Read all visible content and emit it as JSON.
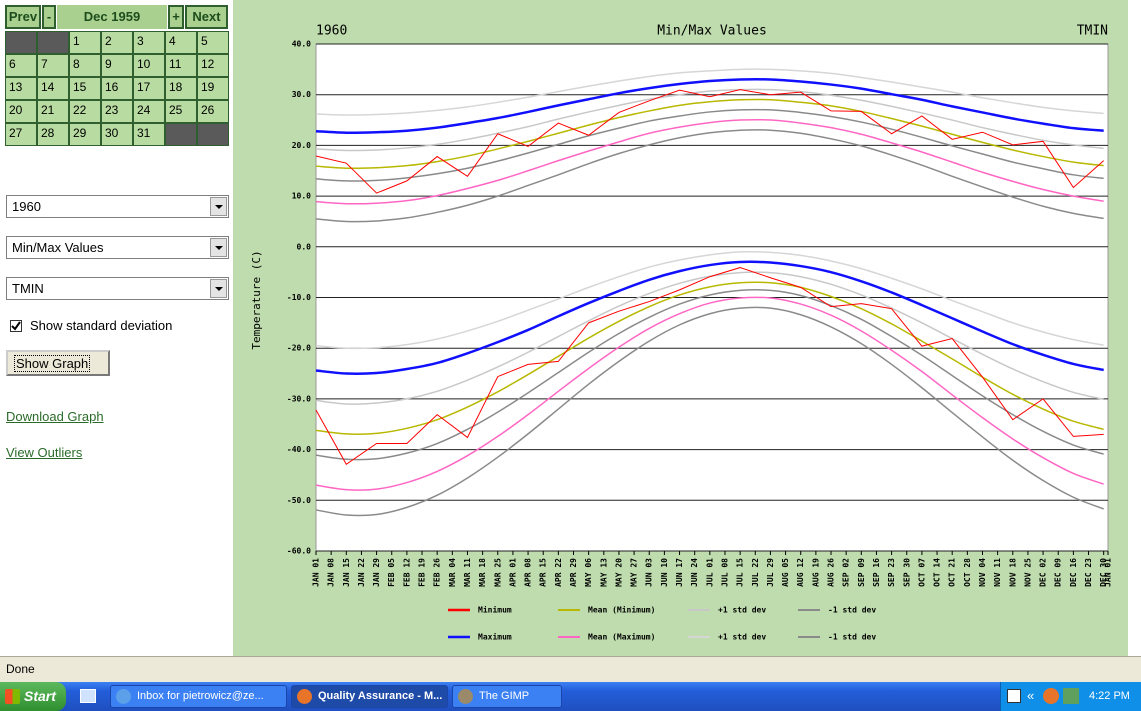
{
  "calendar": {
    "prev": "Prev",
    "minus": "-",
    "month": "Dec 1959",
    "plus": "+",
    "next": "Next",
    "days": [
      1,
      2,
      3,
      4,
      5,
      6,
      7,
      8,
      9,
      10,
      11,
      12,
      13,
      14,
      15,
      16,
      17,
      18,
      19,
      20,
      21,
      22,
      23,
      24,
      25,
      26,
      27,
      28,
      29,
      30,
      31
    ]
  },
  "controls": {
    "year": "1960",
    "graph_type": "Min/Max Values",
    "element": "TMIN",
    "checkbox": "Show standard deviation",
    "button": "Show Graph",
    "links": [
      "Download Graph",
      "View Outliers"
    ]
  },
  "chart_data": {
    "type": "line",
    "title": "Min/Max Values",
    "left_label": "1960",
    "right_label": "TMIN",
    "y_label": "Temperature (C)",
    "xlim": [
      1,
      367
    ],
    "xticks": [
      {
        "value": 1,
        "label": "JAN 01"
      },
      {
        "value": 8,
        "label": "JAN 08"
      },
      {
        "value": 15,
        "label": "JAN 15"
      },
      {
        "value": 22,
        "label": "JAN 22"
      },
      {
        "value": 29,
        "label": "JAN 29"
      },
      {
        "value": 36,
        "label": "FEB 05"
      },
      {
        "value": 43,
        "label": "FEB 12"
      },
      {
        "value": 50,
        "label": "FEB 19"
      },
      {
        "value": 57,
        "label": "FEB 26"
      },
      {
        "value": 64,
        "label": "MAR 04"
      },
      {
        "value": 71,
        "label": "MAR 11"
      },
      {
        "value": 78,
        "label": "MAR 18"
      },
      {
        "value": 85,
        "label": "MAR 25"
      },
      {
        "value": 92,
        "label": "APR 01"
      },
      {
        "value": 99,
        "label": "APR 08"
      },
      {
        "value": 106,
        "label": "APR 15"
      },
      {
        "value": 113,
        "label": "APR 22"
      },
      {
        "value": 120,
        "label": "APR 29"
      },
      {
        "value": 127,
        "label": "MAY 06"
      },
      {
        "value": 134,
        "label": "MAY 13"
      },
      {
        "value": 141,
        "label": "MAY 20"
      },
      {
        "value": 148,
        "label": "MAY 27"
      },
      {
        "value": 155,
        "label": "JUN 03"
      },
      {
        "value": 162,
        "label": "JUN 10"
      },
      {
        "value": 169,
        "label": "JUN 17"
      },
      {
        "value": 176,
        "label": "JUN 24"
      },
      {
        "value": 183,
        "label": "JUL 01"
      },
      {
        "value": 190,
        "label": "JUL 08"
      },
      {
        "value": 197,
        "label": "JUL 15"
      },
      {
        "value": 204,
        "label": "JUL 22"
      },
      {
        "value": 211,
        "label": "JUL 29"
      },
      {
        "value": 218,
        "label": "AUG 05"
      },
      {
        "value": 225,
        "label": "AUG 12"
      },
      {
        "value": 232,
        "label": "AUG 19"
      },
      {
        "value": 239,
        "label": "AUG 26"
      },
      {
        "value": 246,
        "label": "SEP 02"
      },
      {
        "value": 253,
        "label": "SEP 09"
      },
      {
        "value": 260,
        "label": "SEP 16"
      },
      {
        "value": 267,
        "label": "SEP 23"
      },
      {
        "value": 274,
        "label": "SEP 30"
      },
      {
        "value": 281,
        "label": "OCT 07"
      },
      {
        "value": 288,
        "label": "OCT 14"
      },
      {
        "value": 295,
        "label": "OCT 21"
      },
      {
        "value": 302,
        "label": "OCT 28"
      },
      {
        "value": 309,
        "label": "NOV 04"
      },
      {
        "value": 316,
        "label": "NOV 11"
      },
      {
        "value": 323,
        "label": "NOV 18"
      },
      {
        "value": 330,
        "label": "NOV 25"
      },
      {
        "value": 337,
        "label": "DEC 02"
      },
      {
        "value": 344,
        "label": "DEC 09"
      },
      {
        "value": 351,
        "label": "DEC 16"
      },
      {
        "value": 358,
        "label": "DEC 23"
      },
      {
        "value": 365,
        "label": "DEC 30"
      },
      {
        "value": 367,
        "label": "JAN 01"
      }
    ],
    "ylim": [
      -60,
      40
    ],
    "yticks": [
      {
        "value": -60,
        "label": "-60.0"
      },
      {
        "value": -50,
        "label": "-50.0"
      },
      {
        "value": -40,
        "label": "-40.0"
      },
      {
        "value": -30,
        "label": "-30.0"
      },
      {
        "value": -20,
        "label": "-20.0"
      },
      {
        "value": -10,
        "label": "-10.0"
      },
      {
        "value": 0,
        "label": "0.0"
      },
      {
        "value": 10,
        "label": "10.0"
      },
      {
        "value": 20,
        "label": "20.0"
      },
      {
        "value": 30,
        "label": "30.0"
      },
      {
        "value": 40,
        "label": "40.0"
      }
    ],
    "grid": true,
    "x": [
      1,
      15,
      29,
      43,
      57,
      71,
      85,
      99,
      113,
      127,
      141,
      155,
      169,
      183,
      197,
      211,
      225,
      239,
      253,
      267,
      281,
      295,
      309,
      323,
      337,
      351,
      365
    ],
    "series": [
      {
        "name": "Minimum",
        "color": "#ff0000",
        "values": [
          17.9,
          16.5,
          10.6,
          13.0,
          17.8,
          13.9,
          22.3,
          19.8,
          24.4,
          22.0,
          26.5,
          28.8,
          30.9,
          29.6,
          31.0,
          30.0,
          30.5,
          26.8,
          26.7,
          22.3,
          25.8,
          21.2,
          22.6,
          20.1,
          20.8,
          11.7,
          17.0
        ],
        "values_lower": [
          -32.2,
          -42.9,
          -38.8,
          -38.8,
          -33.1,
          -37.6,
          -25.6,
          -23.2,
          -22.6,
          -15.0,
          -12.7,
          -10.8,
          -8.5,
          -5.9,
          -4.1,
          -6.1,
          -8.0,
          -11.8,
          -11.2,
          -12.2,
          -19.6,
          -18.1,
          -25.7,
          -34.1,
          -30.0,
          -37.4,
          -37.0
        ]
      },
      {
        "name": "Mean (Minimum)",
        "color": "#b8b800",
        "values": [
          15.9,
          15.5,
          15.6,
          16.0,
          16.8,
          17.9,
          19.3,
          20.8,
          22.4,
          24.0,
          25.5,
          26.8,
          27.9,
          28.6,
          29.0,
          29.0,
          28.5,
          27.8,
          26.7,
          25.3,
          23.8,
          22.2,
          20.6,
          19.1,
          17.8,
          16.7,
          16.0
        ],
        "values_lower": [
          -36.2,
          -36.9,
          -36.8,
          -35.8,
          -34.1,
          -31.6,
          -28.6,
          -25.2,
          -21.6,
          -18.0,
          -14.7,
          -11.8,
          -9.5,
          -7.9,
          -7.1,
          -7.1,
          -8.0,
          -9.8,
          -12.2,
          -15.2,
          -18.6,
          -22.1,
          -25.7,
          -29.1,
          -32.0,
          -34.4,
          -36.0
        ]
      },
      {
        "name": "+1 std dev",
        "color": "#c8c8c8",
        "values": [
          19.3,
          19.0,
          19.1,
          19.5,
          20.2,
          21.2,
          22.4,
          23.7,
          25.2,
          26.6,
          27.9,
          29.1,
          30.0,
          30.7,
          31.0,
          31.0,
          30.6,
          29.9,
          28.9,
          27.7,
          26.4,
          25.0,
          23.5,
          22.2,
          21.0,
          20.1,
          19.4
        ],
        "values_lower": [
          -30.3,
          -31.0,
          -30.8,
          -30.0,
          -28.5,
          -26.3,
          -23.7,
          -20.8,
          -17.7,
          -14.6,
          -11.7,
          -9.2,
          -7.2,
          -5.8,
          -5.1,
          -5.1,
          -5.9,
          -7.4,
          -9.5,
          -12.1,
          -15.0,
          -18.1,
          -21.2,
          -24.1,
          -26.6,
          -28.7,
          -30.1
        ]
      },
      {
        "name": "-1 std dev",
        "color": "#8a8a8a",
        "values": [
          13.4,
          13.0,
          13.1,
          13.6,
          14.4,
          15.5,
          16.9,
          18.5,
          20.2,
          21.9,
          23.4,
          24.8,
          25.8,
          26.6,
          27.0,
          27.0,
          26.5,
          25.7,
          24.6,
          23.2,
          21.6,
          19.9,
          18.3,
          16.7,
          15.4,
          14.2,
          13.5
        ],
        "values_lower": [
          -41.1,
          -41.9,
          -41.8,
          -40.7,
          -38.8,
          -36.0,
          -32.6,
          -28.8,
          -24.8,
          -20.8,
          -17.1,
          -13.9,
          -11.3,
          -9.5,
          -8.6,
          -8.6,
          -9.6,
          -11.6,
          -14.3,
          -17.7,
          -21.4,
          -25.4,
          -29.4,
          -33.1,
          -36.4,
          -39.1,
          -40.9
        ]
      },
      {
        "name": "Maximum",
        "color": "#1010ff",
        "values": [
          22.8,
          22.5,
          22.6,
          22.9,
          23.5,
          24.4,
          25.4,
          26.6,
          27.9,
          29.1,
          30.3,
          31.3,
          32.1,
          32.7,
          33.0,
          33.0,
          32.6,
          32.0,
          31.2,
          30.1,
          29.0,
          27.7,
          26.5,
          25.3,
          24.3,
          23.4,
          22.9
        ],
        "values_lower": [
          -24.4,
          -25.0,
          -24.9,
          -24.1,
          -22.9,
          -21.0,
          -18.8,
          -16.4,
          -13.7,
          -11.1,
          -8.7,
          -6.5,
          -4.8,
          -3.6,
          -3.0,
          -3.1,
          -3.8,
          -5.0,
          -6.8,
          -9.0,
          -11.5,
          -14.1,
          -16.7,
          -19.2,
          -21.3,
          -23.1,
          -24.3
        ]
      },
      {
        "name": "Mean (Maximum)",
        "color": "#ff66c4",
        "values": [
          8.9,
          8.5,
          8.6,
          9.1,
          10.1,
          11.5,
          13.1,
          15.0,
          17.0,
          18.9,
          20.7,
          22.4,
          23.6,
          24.5,
          25.0,
          25.0,
          24.4,
          23.5,
          22.2,
          20.5,
          18.7,
          16.7,
          14.7,
          12.9,
          11.3,
          10.0,
          9.0
        ],
        "values_lower": [
          -47.0,
          -47.9,
          -47.8,
          -46.5,
          -44.3,
          -41.2,
          -37.4,
          -33.1,
          -28.5,
          -24.0,
          -19.8,
          -16.1,
          -13.2,
          -11.1,
          -10.1,
          -10.1,
          -11.3,
          -13.5,
          -16.6,
          -20.4,
          -24.6,
          -29.2,
          -33.7,
          -37.9,
          -41.6,
          -44.7,
          -46.8
        ]
      },
      {
        "name": "+1 std dev",
        "color": "#d6d6d6",
        "values": [
          26.2,
          26.0,
          26.1,
          26.4,
          26.9,
          27.6,
          28.5,
          29.5,
          30.6,
          31.7,
          32.7,
          33.6,
          34.3,
          34.7,
          35.0,
          35.0,
          34.7,
          34.2,
          33.4,
          32.5,
          31.5,
          30.5,
          29.4,
          28.4,
          27.5,
          26.8,
          26.3
        ],
        "values_lower": [
          -19.5,
          -20.0,
          -19.9,
          -19.3,
          -18.2,
          -16.6,
          -14.7,
          -12.5,
          -10.3,
          -8.0,
          -5.9,
          -4.0,
          -2.6,
          -1.6,
          -1.0,
          -1.1,
          -1.7,
          -2.8,
          -4.3,
          -6.2,
          -8.3,
          -10.6,
          -12.8,
          -15.0,
          -16.8,
          -18.3,
          -19.4
        ]
      },
      {
        "name": "-1 std dev",
        "color": "#8a8a8a",
        "values": [
          5.5,
          5.0,
          5.1,
          5.7,
          6.8,
          8.2,
          10.0,
          12.1,
          14.2,
          16.4,
          18.4,
          20.1,
          21.5,
          22.5,
          23.0,
          23.0,
          22.4,
          21.3,
          19.9,
          18.1,
          16.1,
          13.9,
          11.8,
          9.8,
          8.0,
          6.6,
          5.6
        ],
        "values_lower": [
          -51.9,
          -52.9,
          -52.8,
          -51.4,
          -49.0,
          -45.6,
          -41.5,
          -36.9,
          -32.0,
          -27.1,
          -22.6,
          -18.6,
          -15.4,
          -13.2,
          -12.1,
          -12.1,
          -13.4,
          -15.8,
          -19.1,
          -23.2,
          -27.8,
          -32.7,
          -37.5,
          -42.1,
          -46.1,
          -49.4,
          -51.7
        ]
      }
    ]
  },
  "status_bar": {
    "text": "Done"
  },
  "taskbar": {
    "start": "Start",
    "items": [
      "Inbox for pietrowicz@ze...",
      "Quality Assurance - M...",
      "The GIMP"
    ],
    "tray_collapse": "«",
    "clock": "4:22 PM"
  }
}
